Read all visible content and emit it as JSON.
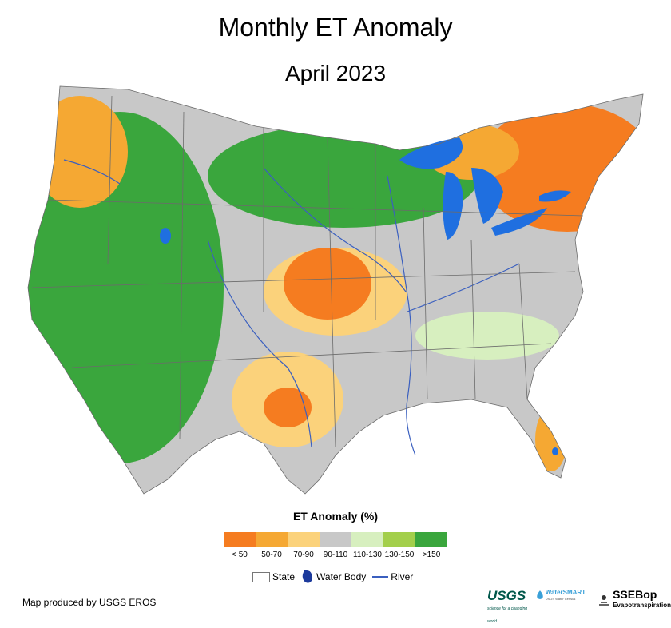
{
  "header": {
    "title": "Monthly ET Anomaly",
    "subtitle": "April 2023"
  },
  "legend": {
    "title": "ET Anomaly (%)",
    "classes": [
      {
        "label": "< 50",
        "color": "#f57c20"
      },
      {
        "label": "50-70",
        "color": "#f5a833"
      },
      {
        "label": "70-90",
        "color": "#fbd27b"
      },
      {
        "label": "90-110",
        "color": "#c8c8c8"
      },
      {
        "label": "110-130",
        "color": "#d7efbf"
      },
      {
        "label": "130-150",
        "color": "#a3cf4b"
      },
      {
        "label": ">150",
        "color": "#3aa63d"
      }
    ],
    "symbols": {
      "state": "State",
      "water_body": "Water Body",
      "river": "River"
    },
    "water_color": "#1f6fe0",
    "state_line_color": "#6b6b6b",
    "river_color": "#3a5fbf"
  },
  "footer": {
    "credit": "Map produced by USGS EROS",
    "usgs_logo": "USGS",
    "usgs_tagline": "science for a changing world",
    "water_smart_logo": "WaterSMART",
    "water_smart_tagline": "USGS Water Census",
    "ssebop_logo": "SSEBop",
    "ssebop_tagline": "Evapotranspiration"
  }
}
